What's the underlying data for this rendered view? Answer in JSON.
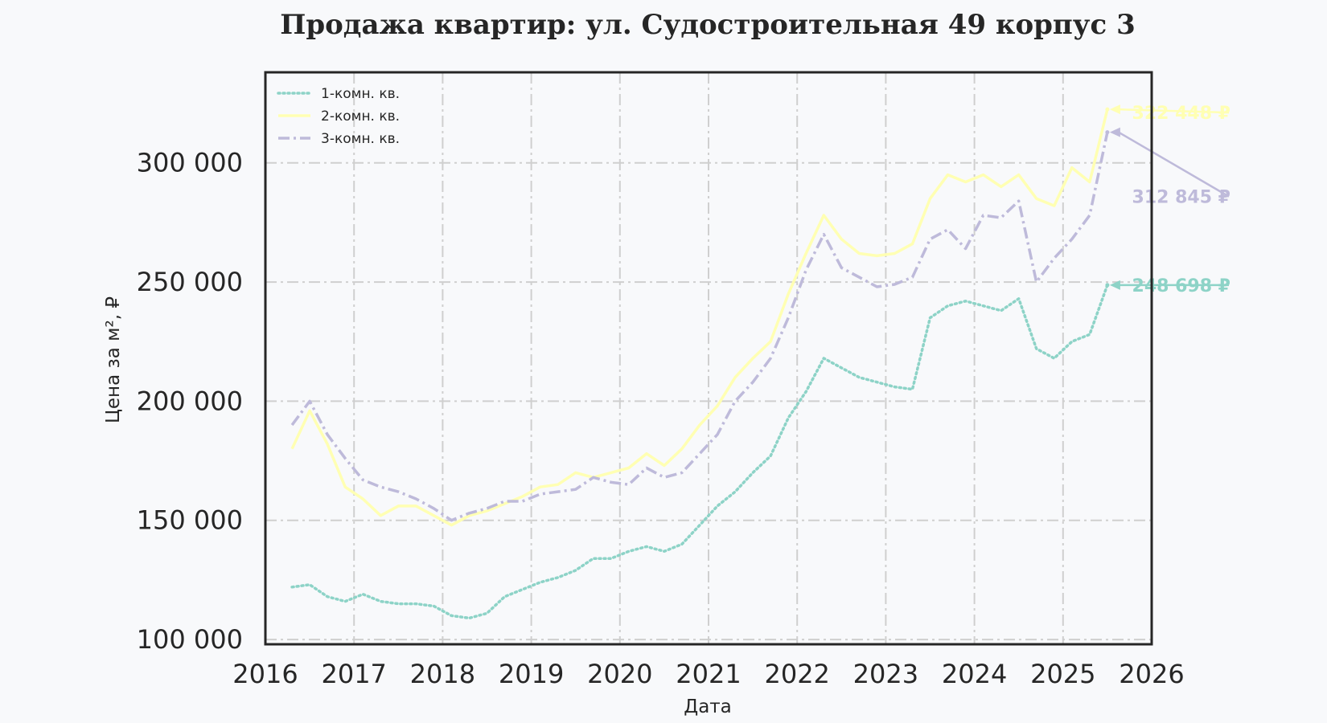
{
  "chart_data": {
    "type": "line",
    "title": "Продажа квартир: ул. Судостроительная 49 корпус 3",
    "xlabel": "Дата",
    "ylabel": "Цена за м², ₽",
    "xlim": [
      2016,
      2026
    ],
    "ylim": [
      98000,
      338000
    ],
    "x_ticks": [
      "2016",
      "2017",
      "2018",
      "2019",
      "2020",
      "2021",
      "2022",
      "2023",
      "2024",
      "2025",
      "2026"
    ],
    "y_ticks": [
      "100 000",
      "150 000",
      "200 000",
      "250 000",
      "300 000"
    ],
    "grid": true,
    "legend_position": "top-left",
    "series": [
      {
        "name": "1-комн. кв.",
        "color": "#8dd3c7",
        "style": "dotted",
        "end_label": "248 698 ₽",
        "x": [
          2016.3,
          2016.5,
          2016.7,
          2016.9,
          2017.1,
          2017.3,
          2017.5,
          2017.7,
          2017.9,
          2018.1,
          2018.3,
          2018.5,
          2018.7,
          2018.9,
          2019.1,
          2019.3,
          2019.5,
          2019.7,
          2019.9,
          2020.1,
          2020.3,
          2020.5,
          2020.7,
          2020.9,
          2021.1,
          2021.3,
          2021.5,
          2021.7,
          2021.9,
          2022.1,
          2022.3,
          2022.5,
          2022.7,
          2022.9,
          2023.1,
          2023.3,
          2023.5,
          2023.7,
          2023.9,
          2024.1,
          2024.3,
          2024.5,
          2024.7,
          2024.9,
          2025.1,
          2025.3,
          2025.5
        ],
        "values": [
          122000,
          123000,
          118000,
          116000,
          119000,
          116000,
          115000,
          115000,
          114000,
          110000,
          109000,
          111000,
          118000,
          121000,
          124000,
          126000,
          129000,
          134000,
          134000,
          137000,
          139000,
          137000,
          140000,
          148000,
          156000,
          162000,
          170000,
          177000,
          193000,
          204000,
          218000,
          214000,
          210000,
          208000,
          206000,
          205000,
          235000,
          240000,
          242000,
          240000,
          238000,
          243000,
          222000,
          218000,
          225000,
          228000,
          248698
        ]
      },
      {
        "name": "2-комн. кв.",
        "color": "#ffffb3",
        "style": "solid",
        "end_label": "322 448 ₽",
        "x": [
          2016.3,
          2016.5,
          2016.7,
          2016.9,
          2017.1,
          2017.3,
          2017.5,
          2017.7,
          2017.9,
          2018.1,
          2018.3,
          2018.5,
          2018.7,
          2018.9,
          2019.1,
          2019.3,
          2019.5,
          2019.7,
          2019.9,
          2020.1,
          2020.3,
          2020.5,
          2020.7,
          2020.9,
          2021.1,
          2021.3,
          2021.5,
          2021.7,
          2021.9,
          2022.1,
          2022.3,
          2022.5,
          2022.7,
          2022.9,
          2023.1,
          2023.3,
          2023.5,
          2023.7,
          2023.9,
          2024.1,
          2024.3,
          2024.5,
          2024.7,
          2024.9,
          2025.1,
          2025.3,
          2025.5
        ],
        "values": [
          180000,
          196000,
          182000,
          164000,
          159000,
          152000,
          156000,
          156000,
          152000,
          148000,
          152000,
          154000,
          157000,
          160000,
          164000,
          165000,
          170000,
          168000,
          170000,
          172000,
          178000,
          173000,
          180000,
          190000,
          198000,
          210000,
          218000,
          225000,
          245000,
          262000,
          278000,
          268000,
          262000,
          261000,
          262000,
          266000,
          285000,
          295000,
          292000,
          295000,
          290000,
          295000,
          285000,
          282000,
          298000,
          292000,
          322448
        ]
      },
      {
        "name": "3-комн. кв.",
        "color": "#bebada",
        "style": "dashdot",
        "end_label": "312 845 ₽",
        "x": [
          2016.3,
          2016.5,
          2016.7,
          2016.9,
          2017.1,
          2017.3,
          2017.5,
          2017.7,
          2017.9,
          2018.1,
          2018.3,
          2018.5,
          2018.7,
          2018.9,
          2019.1,
          2019.3,
          2019.5,
          2019.7,
          2019.9,
          2020.1,
          2020.3,
          2020.5,
          2020.7,
          2020.9,
          2021.1,
          2021.3,
          2021.5,
          2021.7,
          2021.9,
          2022.1,
          2022.3,
          2022.5,
          2022.7,
          2022.9,
          2023.1,
          2023.3,
          2023.5,
          2023.7,
          2023.9,
          2024.1,
          2024.3,
          2024.5,
          2024.7,
          2024.9,
          2025.1,
          2025.3,
          2025.5
        ],
        "values": [
          190000,
          200000,
          186000,
          176000,
          167000,
          164000,
          162000,
          159000,
          155000,
          150000,
          153000,
          155000,
          158000,
          158000,
          161000,
          162000,
          163000,
          168000,
          166000,
          165000,
          172000,
          168000,
          170000,
          178000,
          186000,
          200000,
          208000,
          218000,
          235000,
          255000,
          270000,
          256000,
          252000,
          248000,
          249000,
          252000,
          268000,
          272000,
          264000,
          278000,
          277000,
          284000,
          250000,
          260000,
          268000,
          278000,
          312845
        ]
      }
    ]
  }
}
